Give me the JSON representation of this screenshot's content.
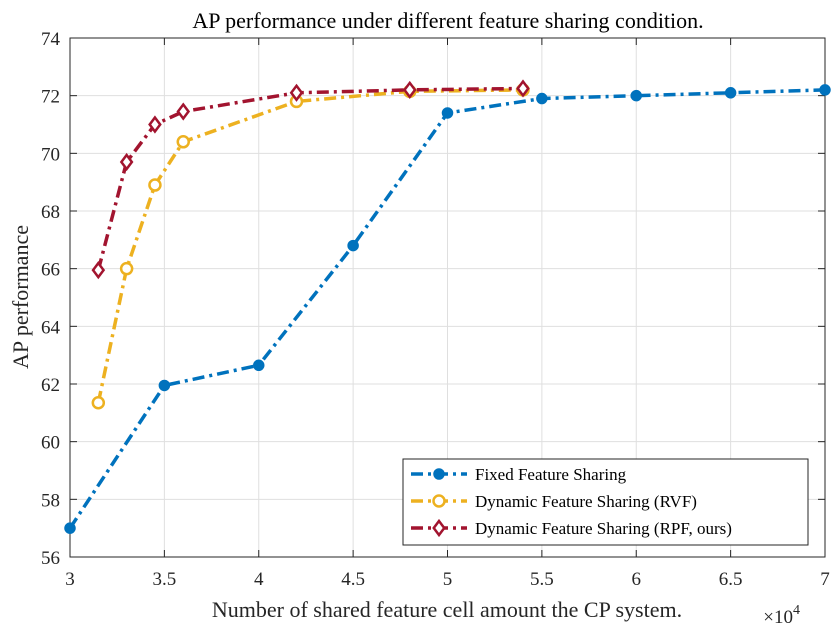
{
  "chart_data": {
    "type": "line",
    "title": "AP performance under different feature sharing condition.",
    "xlabel": "Number of shared feature cell amount the CP system.",
    "ylabel": "AP performance",
    "x_multiplier_label": "×10",
    "x_multiplier_exp": "4",
    "xlim": [
      3,
      7
    ],
    "ylim": [
      56,
      74
    ],
    "xticks": [
      3,
      3.5,
      4,
      4.5,
      5,
      5.5,
      6,
      6.5,
      7
    ],
    "xtick_labels": [
      "3",
      "3.5",
      "4",
      "4.5",
      "5",
      "5.5",
      "6",
      "6.5",
      "7"
    ],
    "yticks": [
      56,
      58,
      60,
      62,
      64,
      66,
      68,
      70,
      72,
      74
    ],
    "ytick_labels": [
      "56",
      "58",
      "60",
      "62",
      "64",
      "66",
      "68",
      "70",
      "72",
      "74"
    ],
    "grid": true,
    "legend_position": "bottom-right",
    "series": [
      {
        "name": "Fixed Feature Sharing",
        "color": "#0072BD",
        "marker": "filled-circle",
        "x": [
          3,
          3.5,
          4,
          4.5,
          5,
          5.5,
          6,
          6.5,
          7
        ],
        "y": [
          57.0,
          61.95,
          62.65,
          66.8,
          71.4,
          71.9,
          72.0,
          72.1,
          72.2
        ]
      },
      {
        "name": "Dynamic Feature Sharing (RVF)",
        "color": "#EDB120",
        "marker": "open-circle",
        "x": [
          3.15,
          3.3,
          3.45,
          3.6,
          4.2,
          4.8,
          5.4
        ],
        "y": [
          61.35,
          66.0,
          68.9,
          70.4,
          71.8,
          72.15,
          72.2
        ]
      },
      {
        "name": "Dynamic Feature Sharing (RPF, ours)",
        "color": "#A2142F",
        "marker": "open-diamond",
        "x": [
          3.15,
          3.3,
          3.45,
          3.6,
          4.2,
          4.8,
          5.4
        ],
        "y": [
          65.95,
          69.7,
          71.0,
          71.45,
          72.1,
          72.2,
          72.25
        ]
      }
    ]
  }
}
